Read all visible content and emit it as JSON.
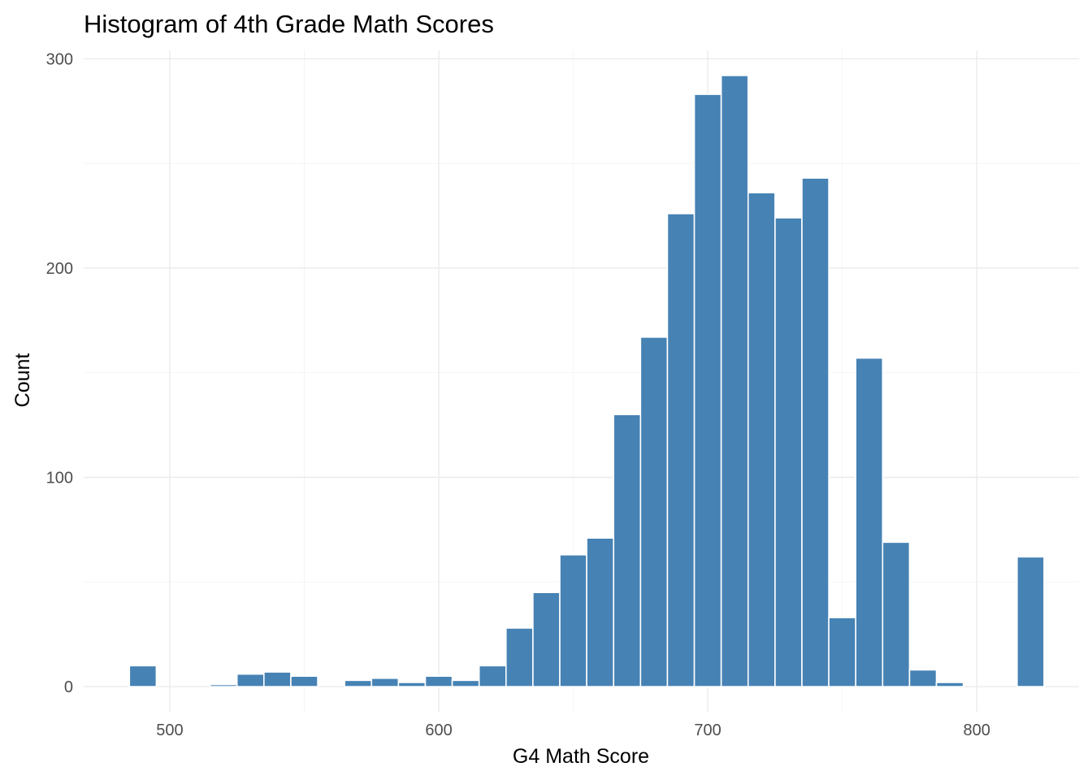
{
  "chart_data": {
    "type": "bar",
    "subtype": "histogram",
    "title": "Histogram of 4th Grade Math Scores",
    "xlabel": "G4 Math Score",
    "ylabel": "Count",
    "bar_color": "#4682B4",
    "bar_outline": "#ffffff",
    "grid": true,
    "legend": "none",
    "xlim": [
      468,
      838
    ],
    "ylim": [
      -12,
      304
    ],
    "xticks": [
      500,
      600,
      700,
      800
    ],
    "yticks": [
      0,
      100,
      200,
      300
    ],
    "bin_width": 10,
    "bins": [
      {
        "x": 490,
        "count": 10
      },
      {
        "x": 500,
        "count": 0
      },
      {
        "x": 510,
        "count": 0
      },
      {
        "x": 520,
        "count": 1
      },
      {
        "x": 530,
        "count": 6
      },
      {
        "x": 540,
        "count": 7
      },
      {
        "x": 550,
        "count": 5
      },
      {
        "x": 560,
        "count": 0
      },
      {
        "x": 570,
        "count": 3
      },
      {
        "x": 580,
        "count": 4
      },
      {
        "x": 590,
        "count": 2
      },
      {
        "x": 600,
        "count": 5
      },
      {
        "x": 610,
        "count": 3
      },
      {
        "x": 620,
        "count": 10
      },
      {
        "x": 630,
        "count": 28
      },
      {
        "x": 640,
        "count": 45
      },
      {
        "x": 650,
        "count": 63
      },
      {
        "x": 660,
        "count": 71
      },
      {
        "x": 670,
        "count": 130
      },
      {
        "x": 680,
        "count": 167
      },
      {
        "x": 690,
        "count": 226
      },
      {
        "x": 700,
        "count": 283
      },
      {
        "x": 710,
        "count": 292
      },
      {
        "x": 720,
        "count": 236
      },
      {
        "x": 730,
        "count": 224
      },
      {
        "x": 740,
        "count": 243
      },
      {
        "x": 750,
        "count": 33
      },
      {
        "x": 760,
        "count": 157
      },
      {
        "x": 770,
        "count": 69
      },
      {
        "x": 780,
        "count": 8
      },
      {
        "x": 790,
        "count": 2
      },
      {
        "x": 800,
        "count": 0
      },
      {
        "x": 810,
        "count": 0
      },
      {
        "x": 820,
        "count": 62
      }
    ]
  }
}
